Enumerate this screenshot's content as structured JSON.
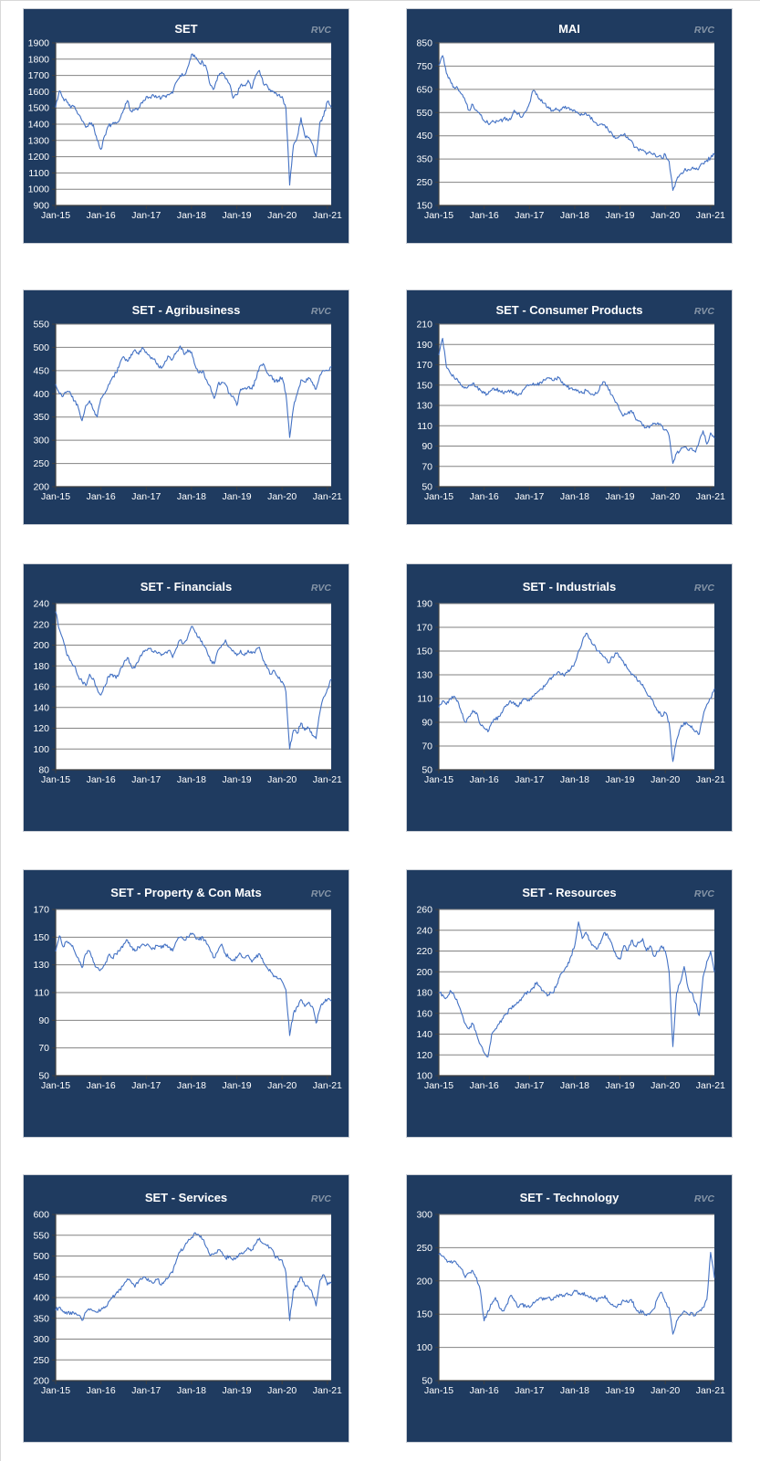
{
  "watermark": "RVC",
  "colors": {
    "page_background": "#FFFFFF",
    "panel_background": "#1F3B60",
    "panel_border": "#C9CED6",
    "plot_background": "#FFFFFF",
    "gridline": "#828282",
    "axis": "#3F3F3F",
    "tick_label": "#FFFFFF",
    "title": "#FFFFFF",
    "watermark": "#8695A7",
    "line": "#4472C4"
  },
  "chart_data": [
    {
      "type": "line",
      "title": "SET",
      "x_start": "Jan-2015",
      "x_interval": "monthly",
      "x_tick_labels": [
        "Jan-15",
        "Jan-16",
        "Jan-17",
        "Jan-18",
        "Jan-19",
        "Jan-20",
        "Jan-21"
      ],
      "ylim": [
        900,
        1900
      ],
      "ytick_step": 100,
      "yticks": [
        900,
        1000,
        1100,
        1200,
        1300,
        1400,
        1500,
        1600,
        1700,
        1800,
        1900
      ],
      "grid": "horizontal",
      "legend": "none",
      "values": [
        1505,
        1605,
        1560,
        1535,
        1500,
        1510,
        1460,
        1420,
        1380,
        1410,
        1395,
        1300,
        1245,
        1330,
        1390,
        1400,
        1405,
        1430,
        1490,
        1545,
        1480,
        1490,
        1500,
        1530,
        1570,
        1565,
        1575,
        1565,
        1560,
        1575,
        1580,
        1590,
        1660,
        1700,
        1700,
        1750,
        1830,
        1810,
        1780,
        1780,
        1740,
        1640,
        1620,
        1700,
        1720,
        1680,
        1650,
        1560,
        1580,
        1640,
        1640,
        1670,
        1620,
        1700,
        1730,
        1650,
        1640,
        1600,
        1590,
        1580,
        1570,
        1500,
        1025,
        1270,
        1320,
        1440,
        1330,
        1320,
        1280,
        1200,
        1410,
        1450,
        1540,
        1505
      ]
    },
    {
      "type": "line",
      "title": "MAI",
      "x_start": "Jan-2015",
      "x_interval": "monthly",
      "x_tick_labels": [
        "Jan-15",
        "Jan-16",
        "Jan-17",
        "Jan-18",
        "Jan-19",
        "Jan-20",
        "Jan-21"
      ],
      "ylim": [
        150,
        850
      ],
      "ytick_step": 100,
      "yticks": [
        150,
        250,
        350,
        450,
        550,
        650,
        750,
        850
      ],
      "grid": "horizontal",
      "legend": "none",
      "values": [
        755,
        795,
        720,
        690,
        660,
        655,
        630,
        600,
        560,
        585,
        560,
        540,
        515,
        505,
        510,
        505,
        515,
        520,
        525,
        520,
        560,
        545,
        530,
        555,
        590,
        645,
        630,
        600,
        590,
        575,
        560,
        570,
        555,
        575,
        570,
        565,
        560,
        545,
        540,
        545,
        535,
        510,
        495,
        500,
        495,
        470,
        455,
        440,
        450,
        455,
        445,
        430,
        400,
        385,
        390,
        370,
        380,
        375,
        360,
        355,
        370,
        340,
        215,
        260,
        285,
        300,
        305,
        310,
        305,
        315,
        330,
        345,
        355,
        370
      ]
    },
    {
      "type": "line",
      "title": "SET - Agribusiness",
      "x_start": "Jan-2015",
      "x_interval": "monthly",
      "x_tick_labels": [
        "Jan-15",
        "Jan-16",
        "Jan-17",
        "Jan-18",
        "Jan-19",
        "Jan-20",
        "Jan-21"
      ],
      "ylim": [
        200,
        550
      ],
      "ytick_step": 50,
      "yticks": [
        200,
        250,
        300,
        350,
        400,
        450,
        500,
        550
      ],
      "grid": "horizontal",
      "legend": "none",
      "values": [
        420,
        400,
        395,
        405,
        400,
        385,
        370,
        342,
        375,
        385,
        365,
        350,
        390,
        400,
        420,
        435,
        445,
        465,
        480,
        470,
        485,
        495,
        485,
        500,
        490,
        480,
        475,
        465,
        455,
        470,
        480,
        475,
        490,
        503,
        485,
        495,
        490,
        460,
        445,
        450,
        430,
        415,
        390,
        420,
        425,
        420,
        400,
        395,
        375,
        410,
        412,
        415,
        410,
        430,
        458,
        465,
        445,
        440,
        425,
        430,
        435,
        400,
        306,
        370,
        400,
        430,
        425,
        435,
        425,
        410,
        440,
        450,
        450,
        458
      ]
    },
    {
      "type": "line",
      "title": "SET - Consumer Products",
      "x_start": "Jan-2015",
      "x_interval": "monthly",
      "x_tick_labels": [
        "Jan-15",
        "Jan-16",
        "Jan-17",
        "Jan-18",
        "Jan-19",
        "Jan-20",
        "Jan-21"
      ],
      "ylim": [
        50,
        210
      ],
      "ytick_step": 20,
      "yticks": [
        50,
        70,
        90,
        110,
        130,
        150,
        170,
        190,
        210
      ],
      "grid": "horizontal",
      "legend": "none",
      "values": [
        180,
        196,
        168,
        162,
        158,
        155,
        150,
        148,
        150,
        152,
        148,
        145,
        142,
        141,
        145,
        146,
        145,
        142,
        143,
        145,
        142,
        140,
        143,
        148,
        150,
        152,
        150,
        153,
        155,
        157,
        155,
        156,
        157,
        150,
        148,
        147,
        145,
        144,
        142,
        145,
        142,
        140,
        142,
        150,
        153,
        145,
        140,
        133,
        125,
        120,
        122,
        125,
        118,
        115,
        110,
        108,
        110,
        112,
        113,
        110,
        106,
        100,
        73,
        83,
        86,
        89,
        86,
        88,
        84,
        95,
        105,
        92,
        103,
        98
      ]
    },
    {
      "type": "line",
      "title": "SET - Financials",
      "x_start": "Jan-2015",
      "x_interval": "monthly",
      "x_tick_labels": [
        "Jan-15",
        "Jan-16",
        "Jan-17",
        "Jan-18",
        "Jan-19",
        "Jan-20",
        "Jan-21"
      ],
      "ylim": [
        80,
        240
      ],
      "ytick_step": 20,
      "yticks": [
        80,
        100,
        120,
        140,
        160,
        180,
        200,
        220,
        240
      ],
      "grid": "horizontal",
      "legend": "none",
      "values": [
        232,
        215,
        205,
        190,
        185,
        180,
        170,
        165,
        161,
        172,
        168,
        158,
        152,
        160,
        170,
        172,
        168,
        175,
        182,
        188,
        180,
        178,
        185,
        192,
        195,
        197,
        193,
        192,
        190,
        193,
        195,
        188,
        197,
        205,
        202,
        208,
        218,
        212,
        208,
        200,
        195,
        185,
        182,
        195,
        200,
        205,
        198,
        195,
        190,
        195,
        190,
        195,
        192,
        195,
        198,
        185,
        178,
        172,
        175,
        168,
        165,
        155,
        100,
        118,
        115,
        125,
        118,
        120,
        113,
        110,
        135,
        150,
        158,
        167
      ]
    },
    {
      "type": "line",
      "title": "SET - Industrials",
      "x_start": "Jan-2015",
      "x_interval": "monthly",
      "x_tick_labels": [
        "Jan-15",
        "Jan-16",
        "Jan-17",
        "Jan-18",
        "Jan-19",
        "Jan-20",
        "Jan-21"
      ],
      "ylim": [
        50,
        190
      ],
      "ytick_step": 20,
      "yticks": [
        50,
        70,
        90,
        110,
        130,
        150,
        170,
        190
      ],
      "grid": "horizontal",
      "legend": "none",
      "values": [
        103,
        108,
        105,
        110,
        112,
        108,
        98,
        90,
        95,
        100,
        98,
        88,
        85,
        82,
        90,
        92,
        95,
        100,
        105,
        108,
        105,
        103,
        108,
        110,
        108,
        112,
        115,
        118,
        120,
        125,
        128,
        130,
        132,
        130,
        132,
        135,
        140,
        150,
        158,
        165,
        160,
        155,
        150,
        148,
        145,
        140,
        145,
        148,
        145,
        140,
        135,
        130,
        128,
        125,
        122,
        115,
        112,
        105,
        100,
        95,
        98,
        90,
        57,
        75,
        85,
        90,
        88,
        87,
        82,
        80,
        95,
        105,
        110,
        118
      ]
    },
    {
      "type": "line",
      "title": "SET - Property & Con Mats",
      "x_start": "Jan-2015",
      "x_interval": "monthly",
      "x_tick_labels": [
        "Jan-15",
        "Jan-16",
        "Jan-17",
        "Jan-18",
        "Jan-19",
        "Jan-20",
        "Jan-21"
      ],
      "ylim": [
        50,
        170
      ],
      "ytick_step": 20,
      "yticks": [
        50,
        70,
        90,
        110,
        130,
        150,
        170
      ],
      "grid": "horizontal",
      "legend": "none",
      "values": [
        140,
        151,
        143,
        147,
        145,
        140,
        135,
        128,
        138,
        140,
        132,
        128,
        127,
        130,
        137,
        135,
        138,
        140,
        145,
        148,
        143,
        140,
        143,
        145,
        144,
        143,
        142,
        144,
        142,
        145,
        143,
        140,
        147,
        150,
        148,
        150,
        152,
        150,
        148,
        150,
        145,
        140,
        135,
        140,
        145,
        138,
        135,
        133,
        135,
        138,
        135,
        137,
        132,
        135,
        138,
        132,
        128,
        125,
        122,
        120,
        118,
        112,
        79,
        95,
        100,
        105,
        100,
        103,
        100,
        88,
        98,
        103,
        105,
        104
      ]
    },
    {
      "type": "line",
      "title": "SET - Resources",
      "x_start": "Jan-2015",
      "x_interval": "monthly",
      "x_tick_labels": [
        "Jan-15",
        "Jan-16",
        "Jan-17",
        "Jan-18",
        "Jan-19",
        "Jan-20",
        "Jan-21"
      ],
      "ylim": [
        100,
        260
      ],
      "ytick_step": 20,
      "yticks": [
        100,
        120,
        140,
        160,
        180,
        200,
        220,
        240,
        260
      ],
      "grid": "horizontal",
      "legend": "none",
      "values": [
        180,
        178,
        175,
        182,
        178,
        170,
        160,
        150,
        145,
        150,
        140,
        130,
        122,
        118,
        140,
        145,
        150,
        155,
        160,
        165,
        168,
        170,
        175,
        180,
        180,
        185,
        190,
        185,
        180,
        178,
        180,
        185,
        195,
        200,
        205,
        215,
        225,
        248,
        232,
        238,
        230,
        225,
        222,
        230,
        238,
        232,
        225,
        215,
        212,
        225,
        220,
        230,
        225,
        228,
        232,
        220,
        225,
        215,
        220,
        225,
        220,
        200,
        128,
        180,
        190,
        205,
        185,
        180,
        170,
        158,
        195,
        210,
        220,
        200
      ]
    },
    {
      "type": "line",
      "title": "SET - Services",
      "x_start": "Jan-2015",
      "x_interval": "monthly",
      "x_tick_labels": [
        "Jan-15",
        "Jan-16",
        "Jan-17",
        "Jan-18",
        "Jan-19",
        "Jan-20",
        "Jan-21"
      ],
      "ylim": [
        200,
        600
      ],
      "ytick_step": 50,
      "yticks": [
        200,
        250,
        300,
        350,
        400,
        450,
        500,
        550,
        600
      ],
      "grid": "horizontal",
      "legend": "none",
      "values": [
        370,
        377,
        365,
        360,
        365,
        360,
        358,
        345,
        365,
        370,
        368,
        365,
        370,
        375,
        390,
        400,
        410,
        420,
        430,
        445,
        438,
        425,
        440,
        445,
        445,
        440,
        435,
        445,
        430,
        440,
        450,
        460,
        490,
        510,
        520,
        535,
        545,
        556,
        550,
        540,
        520,
        500,
        505,
        515,
        510,
        495,
        500,
        490,
        500,
        505,
        510,
        520,
        515,
        530,
        543,
        530,
        525,
        520,
        500,
        495,
        490,
        460,
        345,
        420,
        430,
        450,
        430,
        425,
        410,
        380,
        440,
        455,
        430,
        435
      ]
    },
    {
      "type": "line",
      "title": "SET - Technology",
      "x_start": "Jan-2015",
      "x_interval": "monthly",
      "x_tick_labels": [
        "Jan-15",
        "Jan-16",
        "Jan-17",
        "Jan-18",
        "Jan-19",
        "Jan-20",
        "Jan-21"
      ],
      "ylim": [
        50,
        300
      ],
      "ytick_step": 50,
      "yticks": [
        50,
        100,
        150,
        200,
        250,
        300
      ],
      "grid": "horizontal",
      "legend": "none",
      "values": [
        240,
        237,
        232,
        228,
        230,
        225,
        218,
        205,
        212,
        215,
        205,
        185,
        140,
        155,
        165,
        175,
        160,
        155,
        165,
        178,
        170,
        160,
        165,
        162,
        160,
        168,
        172,
        175,
        172,
        175,
        172,
        175,
        180,
        178,
        182,
        178,
        186,
        180,
        182,
        178,
        175,
        172,
        170,
        175,
        178,
        168,
        165,
        160,
        165,
        170,
        168,
        172,
        160,
        152,
        155,
        148,
        152,
        158,
        175,
        183,
        168,
        160,
        120,
        140,
        148,
        155,
        150,
        152,
        148,
        155,
        160,
        172,
        243,
        205
      ]
    }
  ]
}
